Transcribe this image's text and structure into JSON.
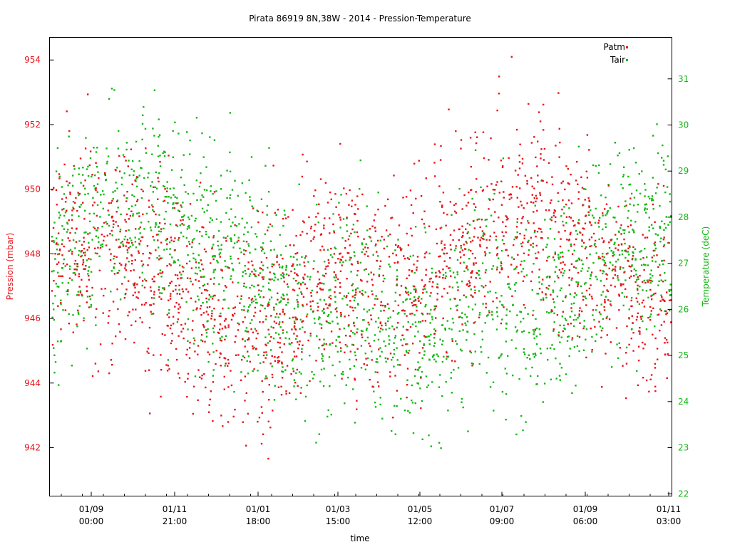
{
  "chart_data": {
    "type": "scatter",
    "title": "Pirata 86919 8N,38W - 2014 - Pression-Temperature",
    "xlabel": "time",
    "ylabel": "Pression (mbar)",
    "y2label": "Temperature (deC)",
    "grid": false,
    "legend_position": "top-right",
    "x_ticks": [
      {
        "date": "01/09",
        "time": "00:00"
      },
      {
        "date": "01/11",
        "time": "21:00"
      },
      {
        "date": "01/01",
        "time": "18:00"
      },
      {
        "date": "01/03",
        "time": "15:00"
      },
      {
        "date": "01/05",
        "time": "12:00"
      },
      {
        "date": "01/07",
        "time": "09:00"
      },
      {
        "date": "01/09",
        "time": "06:00"
      },
      {
        "date": "01/11",
        "time": "03:00"
      }
    ],
    "x_range": [
      "2013-08-02",
      "2014-11-02"
    ],
    "ylim": [
      940.5,
      954.7
    ],
    "y_ticks": [
      942,
      944,
      946,
      948,
      950,
      952,
      954
    ],
    "y2lim": [
      21.95,
      31.9
    ],
    "y2_ticks": [
      22,
      23,
      24,
      25,
      26,
      27,
      28,
      29,
      30,
      31
    ],
    "colors": {
      "Patm": "#e8141c",
      "Tair": "#14b814"
    },
    "series": [
      {
        "name": "Patm",
        "axis": "left",
        "x": [
          "2013-08-15",
          "2013-09-15",
          "2013-10-15",
          "2013-11-15",
          "2013-12-15",
          "2014-01-15",
          "2014-02-15",
          "2014-03-15",
          "2014-04-15",
          "2014-05-15",
          "2014-06-15",
          "2014-07-15",
          "2014-08-15",
          "2014-09-15",
          "2014-10-15"
        ],
        "values": [
          948.5,
          948.0,
          947.5,
          946.5,
          945.5,
          946.0,
          948.0,
          947.0,
          947.0,
          948.0,
          948.5,
          949.5,
          948.5,
          947.5,
          946.5
        ]
      },
      {
        "name": "Tair",
        "axis": "right",
        "x": [
          "2013-08-15",
          "2013-09-15",
          "2013-10-15",
          "2013-11-15",
          "2013-12-15",
          "2014-01-15",
          "2014-02-15",
          "2014-03-15",
          "2014-04-15",
          "2014-05-15",
          "2014-06-15",
          "2014-07-15",
          "2014-08-15",
          "2014-09-15",
          "2014-10-15"
        ],
        "values": [
          27.0,
          28.5,
          28.0,
          27.5,
          27.0,
          26.5,
          25.5,
          26.2,
          25.5,
          25.5,
          26.5,
          26.0,
          26.5,
          27.5,
          27.5
        ]
      }
    ]
  }
}
